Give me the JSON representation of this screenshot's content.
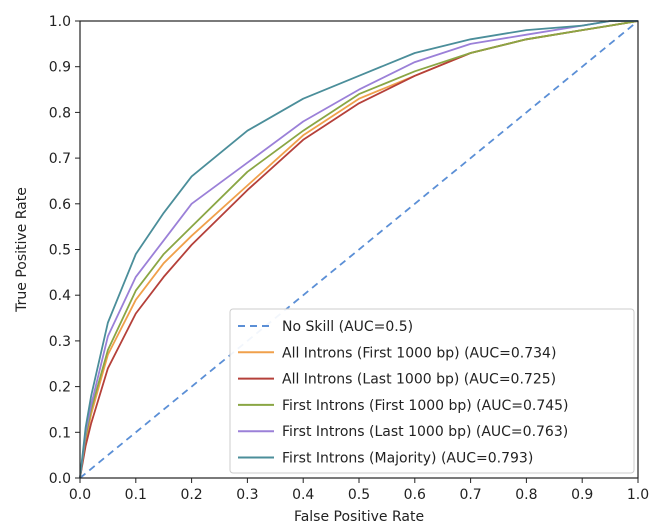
{
  "chart_data": {
    "type": "line",
    "title": "",
    "xlabel": "False Positive Rate",
    "ylabel": "True Positive Rate",
    "xlim": [
      0.0,
      1.0
    ],
    "ylim": [
      0.0,
      1.0
    ],
    "xticks": [
      "0.0",
      "0.1",
      "0.2",
      "0.3",
      "0.4",
      "0.5",
      "0.6",
      "0.7",
      "0.8",
      "0.9",
      "1.0"
    ],
    "yticks": [
      "0.0",
      "0.1",
      "0.2",
      "0.3",
      "0.4",
      "0.5",
      "0.6",
      "0.7",
      "0.8",
      "0.9",
      "1.0"
    ],
    "grid": false,
    "legend_position": "lower-right",
    "series": [
      {
        "name": "No Skill (AUC=0.5)",
        "color": "#5b8fd6",
        "dash": true,
        "x": [
          0.0,
          1.0
        ],
        "y": [
          0.0,
          1.0
        ]
      },
      {
        "name": "All Introns (First 1000 bp) (AUC=0.734)",
        "color": "#f0a04b",
        "dash": false,
        "x": [
          0.0,
          0.01,
          0.02,
          0.05,
          0.1,
          0.15,
          0.2,
          0.3,
          0.4,
          0.5,
          0.6,
          0.7,
          0.8,
          0.9,
          0.95,
          1.0
        ],
        "y": [
          0.0,
          0.08,
          0.14,
          0.27,
          0.39,
          0.47,
          0.53,
          0.64,
          0.75,
          0.83,
          0.88,
          0.93,
          0.96,
          0.98,
          0.99,
          1.0
        ]
      },
      {
        "name": "All Introns (Last 1000 bp) (AUC=0.725)",
        "color": "#b5403a",
        "dash": false,
        "x": [
          0.0,
          0.01,
          0.02,
          0.05,
          0.1,
          0.15,
          0.2,
          0.3,
          0.4,
          0.5,
          0.6,
          0.7,
          0.8,
          0.9,
          0.95,
          1.0
        ],
        "y": [
          0.0,
          0.07,
          0.12,
          0.24,
          0.36,
          0.44,
          0.51,
          0.63,
          0.74,
          0.82,
          0.88,
          0.93,
          0.96,
          0.98,
          0.99,
          1.0
        ]
      },
      {
        "name": "First Introns (First 1000 bp) (AUC=0.745)",
        "color": "#8aa644",
        "dash": false,
        "x": [
          0.0,
          0.01,
          0.02,
          0.05,
          0.1,
          0.15,
          0.2,
          0.3,
          0.4,
          0.5,
          0.6,
          0.7,
          0.8,
          0.9,
          0.95,
          1.0
        ],
        "y": [
          0.0,
          0.09,
          0.15,
          0.28,
          0.41,
          0.49,
          0.55,
          0.67,
          0.76,
          0.84,
          0.89,
          0.93,
          0.96,
          0.98,
          0.99,
          1.0
        ]
      },
      {
        "name": "First Introns (Last 1000 bp) (AUC=0.763)",
        "color": "#9b80d8",
        "dash": false,
        "x": [
          0.0,
          0.01,
          0.02,
          0.05,
          0.1,
          0.15,
          0.2,
          0.3,
          0.4,
          0.5,
          0.6,
          0.7,
          0.8,
          0.9,
          0.95,
          1.0
        ],
        "y": [
          0.0,
          0.1,
          0.16,
          0.31,
          0.44,
          0.52,
          0.6,
          0.69,
          0.78,
          0.85,
          0.91,
          0.95,
          0.97,
          0.99,
          1.0,
          1.0
        ]
      },
      {
        "name": "First Introns (Majority) (AUC=0.793)",
        "color": "#4b8e9a",
        "dash": false,
        "x": [
          0.0,
          0.01,
          0.02,
          0.05,
          0.1,
          0.15,
          0.2,
          0.3,
          0.4,
          0.5,
          0.6,
          0.7,
          0.8,
          0.9,
          0.95,
          1.0
        ],
        "y": [
          0.0,
          0.11,
          0.18,
          0.34,
          0.49,
          0.58,
          0.66,
          0.76,
          0.83,
          0.88,
          0.93,
          0.96,
          0.98,
          0.99,
          1.0,
          1.0
        ]
      }
    ]
  }
}
